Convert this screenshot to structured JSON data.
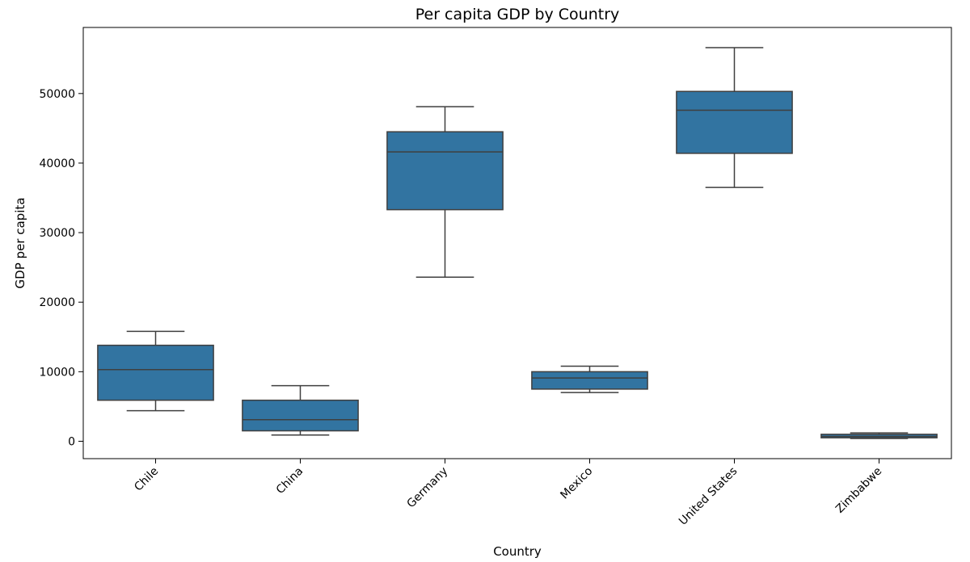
{
  "chart_data": {
    "type": "box",
    "title": "Per capita GDP by Country",
    "xlabel": "Country",
    "ylabel": "GDP per capita",
    "ylim": [
      -2500,
      59500
    ],
    "yticks": [
      0,
      10000,
      20000,
      30000,
      40000,
      50000
    ],
    "y_tick_labels": [
      "0",
      "10000",
      "20000",
      "30000",
      "40000",
      "50000"
    ],
    "grid": false,
    "legend": "none",
    "colors": {
      "box_fill": "#3274a1",
      "box_line": "#3f3f3f",
      "axes": "#000000"
    },
    "categories": [
      "Chile",
      "China",
      "Germany",
      "Mexico",
      "United States",
      "Zimbabwe"
    ],
    "boxes": [
      {
        "category": "Chile",
        "whisker_low": 4400,
        "q1": 5900,
        "median": 10300,
        "q3": 13800,
        "whisker_high": 15800
      },
      {
        "category": "China",
        "whisker_low": 900,
        "q1": 1500,
        "median": 3100,
        "q3": 5900,
        "whisker_high": 8000
      },
      {
        "category": "Germany",
        "whisker_low": 23600,
        "q1": 33300,
        "median": 41600,
        "q3": 44500,
        "whisker_high": 48100
      },
      {
        "category": "Mexico",
        "whisker_low": 7000,
        "q1": 7500,
        "median": 9100,
        "q3": 10000,
        "whisker_high": 10800
      },
      {
        "category": "United States",
        "whisker_low": 36500,
        "q1": 41400,
        "median": 47600,
        "q3": 50300,
        "whisker_high": 56600
      },
      {
        "category": "Zimbabwe",
        "whisker_low": 400,
        "q1": 500,
        "median": 700,
        "q3": 1000,
        "whisker_high": 1200
      }
    ]
  }
}
